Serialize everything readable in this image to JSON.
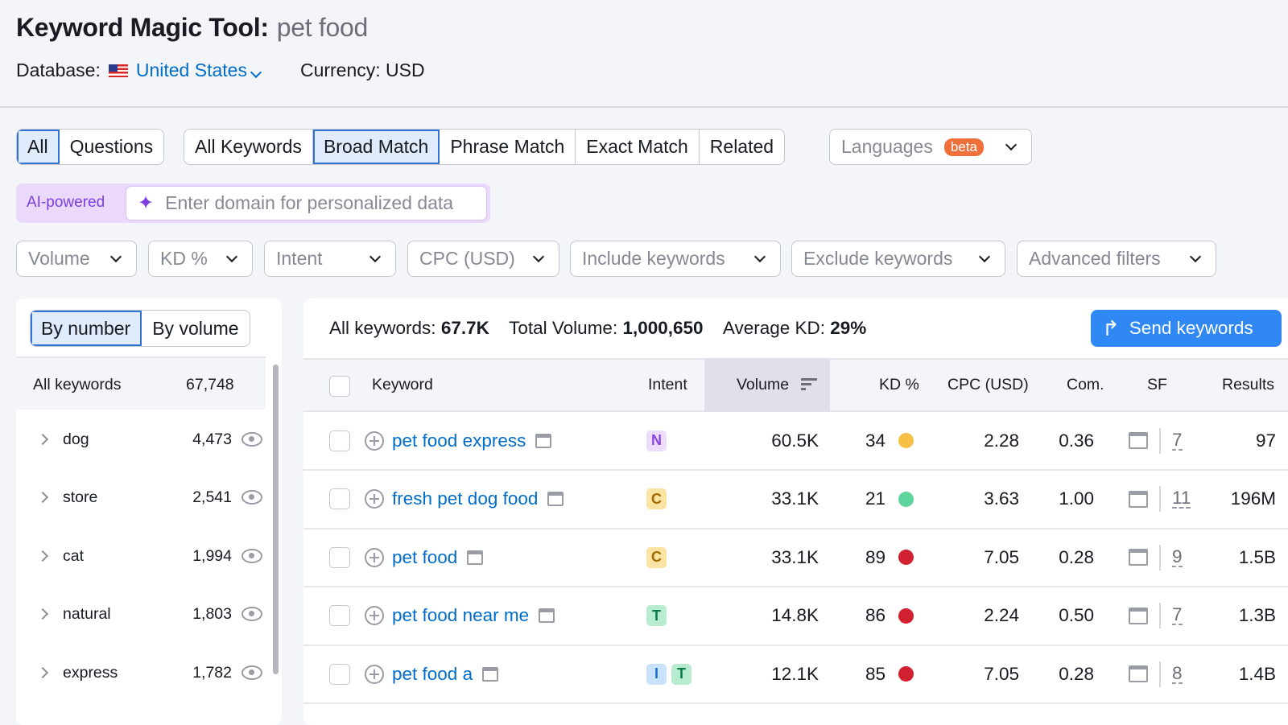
{
  "header": {
    "title": "Keyword Magic Tool:",
    "query": "pet food",
    "database_label": "Database:",
    "database_value": "United States",
    "currency": "Currency: USD"
  },
  "tabs_type": [
    {
      "label": "All",
      "active": true
    },
    {
      "label": "Questions",
      "active": false
    }
  ],
  "tabs_match": [
    {
      "label": "All Keywords",
      "active": false
    },
    {
      "label": "Broad Match",
      "active": true
    },
    {
      "label": "Phrase Match",
      "active": false
    },
    {
      "label": "Exact Match",
      "active": false
    },
    {
      "label": "Related",
      "active": false
    }
  ],
  "languages": {
    "label": "Languages",
    "badge": "beta"
  },
  "ai": {
    "label": "AI-powered",
    "placeholder": "Enter domain for personalized data"
  },
  "filters": [
    "Volume",
    "KD %",
    "Intent",
    "CPC (USD)",
    "Include keywords",
    "Exclude keywords",
    "Advanced filters"
  ],
  "sidebar": {
    "toggle": [
      "By number",
      "By volume"
    ],
    "all_label": "All keywords",
    "all_count": "67,748",
    "groups": [
      {
        "name": "dog",
        "count": "4,473"
      },
      {
        "name": "store",
        "count": "2,541"
      },
      {
        "name": "cat",
        "count": "1,994"
      },
      {
        "name": "natural",
        "count": "1,803"
      },
      {
        "name": "express",
        "count": "1,782"
      }
    ]
  },
  "summary": {
    "all_label": "All keywords:",
    "all_value": "67.7K",
    "vol_label": "Total Volume:",
    "vol_value": "1,000,650",
    "kd_label": "Average KD:",
    "kd_value": "29%",
    "send": "Send keywords"
  },
  "table": {
    "columns": [
      "Keyword",
      "Intent",
      "Volume",
      "KD %",
      "CPC (USD)",
      "Com.",
      "SF",
      "Results"
    ],
    "rows": [
      {
        "keyword": "pet food express",
        "intent": [
          "N"
        ],
        "volume": "60.5K",
        "kd": "34",
        "kd_color": "#f5c045",
        "cpc": "2.28",
        "com": "0.36",
        "sf": "7",
        "results": "97"
      },
      {
        "keyword": "fresh pet dog food",
        "intent": [
          "C"
        ],
        "volume": "33.1K",
        "kd": "21",
        "kd_color": "#5fd39c",
        "cpc": "3.63",
        "com": "1.00",
        "sf": "11",
        "results": "196M"
      },
      {
        "keyword": "pet food",
        "intent": [
          "C"
        ],
        "volume": "33.1K",
        "kd": "89",
        "kd_color": "#d1202f",
        "cpc": "7.05",
        "com": "0.28",
        "sf": "9",
        "results": "1.5B"
      },
      {
        "keyword": "pet food near me",
        "intent": [
          "T"
        ],
        "volume": "14.8K",
        "kd": "86",
        "kd_color": "#d1202f",
        "cpc": "2.24",
        "com": "0.50",
        "sf": "7",
        "results": "1.3B"
      },
      {
        "keyword": "pet food a",
        "intent": [
          "I",
          "T"
        ],
        "volume": "12.1K",
        "kd": "85",
        "kd_color": "#d1202f",
        "cpc": "7.05",
        "com": "0.28",
        "sf": "8",
        "results": "1.4B"
      }
    ]
  },
  "intent_colors": {
    "N": {
      "bg": "#ecdcfd",
      "fg": "#8a44e6"
    },
    "C": {
      "bg": "#fbe3a1",
      "fg": "#a06a00"
    },
    "T": {
      "bg": "#b8ecd1",
      "fg": "#0a7a46"
    },
    "I": {
      "bg": "#c8e2fb",
      "fg": "#1d6cc8"
    }
  },
  "accent": "#2f88f3"
}
